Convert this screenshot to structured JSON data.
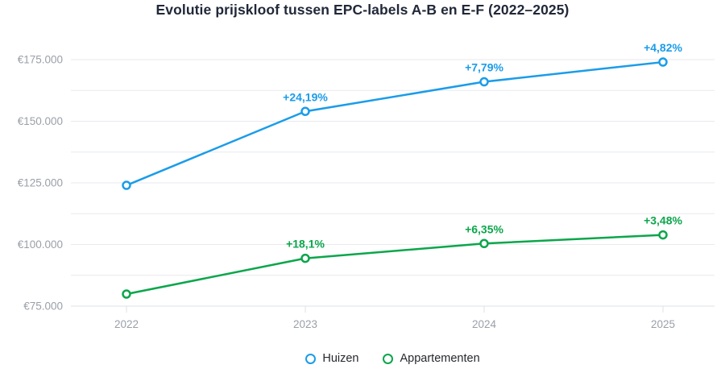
{
  "chart_data": {
    "type": "line",
    "title": "Evolutie prijskloof tussen EPC-labels A-B en E-F (2022–2025)",
    "categories": [
      "2022",
      "2023",
      "2024",
      "2025"
    ],
    "series": [
      {
        "name": "Huizen",
        "color": "#1b9ce9",
        "values": [
          124000,
          154000,
          166000,
          174000
        ],
        "point_labels": [
          "",
          "+24,19%",
          "+7,79%",
          "+4,82%"
        ]
      },
      {
        "name": "Appartementen",
        "color": "#0ba64b",
        "values": [
          79900,
          94400,
          100400,
          103900
        ],
        "point_labels": [
          "",
          "+18,1%",
          "+6,35%",
          "+3,48%"
        ]
      }
    ],
    "xlabel": "",
    "ylabel": "",
    "ylim": [
      75000,
      175000
    ],
    "ytick_step": 25000,
    "ytick_labels": [
      "€75.000",
      "€100.000",
      "€125.000",
      "€150.000",
      "€175.000"
    ],
    "grid_step": 12500,
    "grid": true,
    "legend_position": "bottom",
    "marker_style": "open-circle",
    "background_color": "#ffffff",
    "axis_label_color": "#9aa0a8",
    "gridline_color": "#e8eaee",
    "title_color": "#212838"
  }
}
